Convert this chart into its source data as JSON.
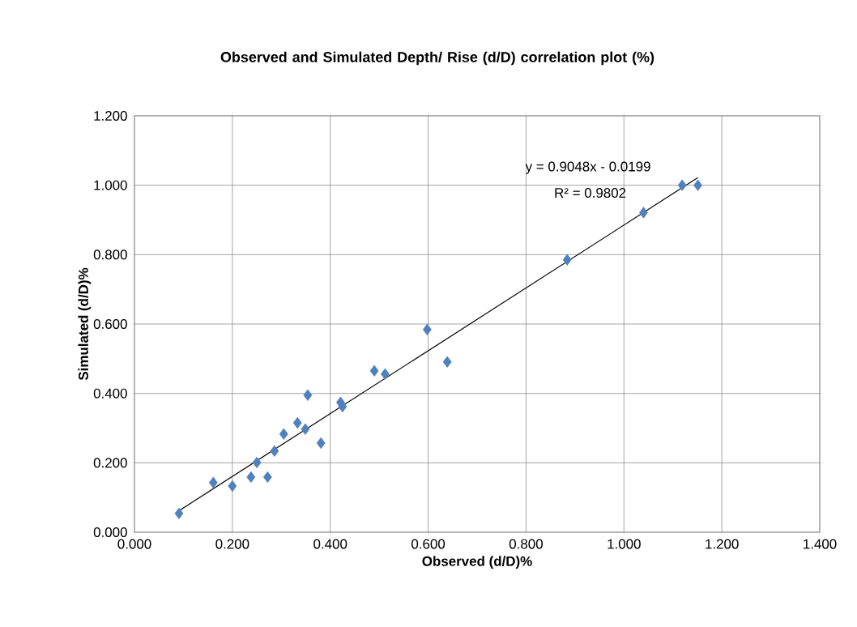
{
  "chart_data": {
    "type": "scatter",
    "title": "Observed and Simulated Depth/ Rise (d/D) correlation plot (%)",
    "xlabel": "Observed (d/D)%",
    "ylabel": "Simulated (d/D)%",
    "xlim": [
      0,
      1.4
    ],
    "ylim": [
      0,
      1.2
    ],
    "xticks": [
      {
        "value": 0,
        "label": "0.000"
      },
      {
        "value": 0.2,
        "label": "0.200"
      },
      {
        "value": 0.4,
        "label": "0.400"
      },
      {
        "value": 0.6,
        "label": "0.600"
      },
      {
        "value": 0.8,
        "label": "0.800"
      },
      {
        "value": 1.0,
        "label": "1.000"
      },
      {
        "value": 1.2,
        "label": "1.200"
      },
      {
        "value": 1.4,
        "label": "1.400"
      }
    ],
    "yticks": [
      {
        "value": 0,
        "label": "0.000"
      },
      {
        "value": 0.2,
        "label": "0.200"
      },
      {
        "value": 0.4,
        "label": "0.400"
      },
      {
        "value": 0.6,
        "label": "0.600"
      },
      {
        "value": 0.8,
        "label": "0.800"
      },
      {
        "value": 1.0,
        "label": "1.000"
      },
      {
        "value": 1.2,
        "label": "1.200"
      }
    ],
    "grid": true,
    "marker": "diamond",
    "annotations": [
      "y = 0.9048x - 0.0199",
      "R² = 0.9802"
    ],
    "series": [
      {
        "type": "scatter",
        "color": "#4f81bd",
        "x": [
          0.091,
          0.161,
          0.2,
          0.238,
          0.25,
          0.272,
          0.286,
          0.305,
          0.333,
          0.349,
          0.354,
          0.381,
          0.421,
          0.425,
          0.49,
          0.512,
          0.598,
          0.639,
          0.884,
          1.04,
          1.119,
          1.151
        ],
        "values": [
          0.054,
          0.143,
          0.133,
          0.159,
          0.201,
          0.159,
          0.234,
          0.283,
          0.315,
          0.297,
          0.395,
          0.257,
          0.374,
          0.362,
          0.465,
          0.456,
          0.584,
          0.491,
          0.785,
          0.921,
          1.0,
          1.0
        ]
      },
      {
        "type": "line",
        "color": "#000000",
        "marker": "none",
        "x": [
          0.091,
          1.151
        ],
        "values": [
          0.062,
          1.022
        ]
      }
    ]
  }
}
